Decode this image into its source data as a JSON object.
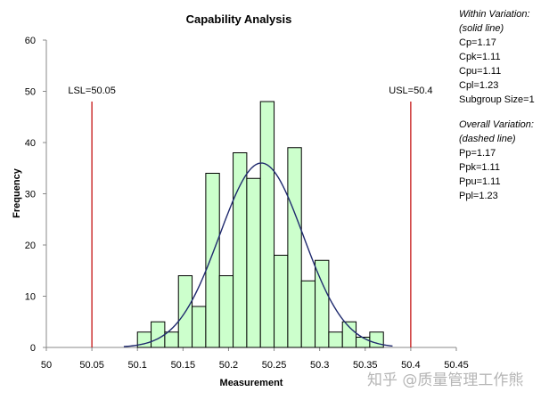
{
  "chart_data": {
    "type": "bar",
    "title": "Capability Analysis",
    "xlabel": "Measurement",
    "ylabel": "Frequency",
    "xlim": [
      50,
      50.45
    ],
    "ylim": [
      0,
      60
    ],
    "x_ticks": [
      "50",
      "50.05",
      "50.1",
      "50.15",
      "50.2",
      "50.25",
      "50.3",
      "50.35",
      "50.4",
      "50.45"
    ],
    "y_ticks": [
      "0",
      "10",
      "20",
      "30",
      "40",
      "50",
      "60"
    ],
    "bin_width": 0.015,
    "bins": [
      {
        "start": 50.1,
        "count": 3
      },
      {
        "start": 50.115,
        "count": 5
      },
      {
        "start": 50.13,
        "count": 3
      },
      {
        "start": 50.145,
        "count": 14
      },
      {
        "start": 50.16,
        "count": 8
      },
      {
        "start": 50.175,
        "count": 34
      },
      {
        "start": 50.19,
        "count": 14
      },
      {
        "start": 50.205,
        "count": 38
      },
      {
        "start": 50.22,
        "count": 33
      },
      {
        "start": 50.235,
        "count": 48
      },
      {
        "start": 50.25,
        "count": 18
      },
      {
        "start": 50.265,
        "count": 39
      },
      {
        "start": 50.28,
        "count": 13
      },
      {
        "start": 50.295,
        "count": 17
      },
      {
        "start": 50.31,
        "count": 3
      },
      {
        "start": 50.325,
        "count": 5
      },
      {
        "start": 50.34,
        "count": 2
      },
      {
        "start": 50.355,
        "count": 3
      }
    ],
    "bar_fill": "#ccffcc",
    "bar_stroke": "#000000",
    "curve": {
      "mean": 50.236,
      "sd": 0.046,
      "peak": 36,
      "range": [
        50.085,
        50.38
      ],
      "color": "#1f2a6e"
    },
    "spec_limits": [
      {
        "label": "LSL=50.05",
        "value": 50.05,
        "color": "#c00000"
      },
      {
        "label": "USL=50.4",
        "value": 50.4,
        "color": "#c00000"
      }
    ]
  },
  "stats": {
    "within_header": "Within Variation:",
    "within_sub": "(solid line)",
    "within": [
      "Cp=1.17",
      "Cpk=1.11",
      "Cpu=1.11",
      "Cpl=1.23",
      "Subgroup Size=1"
    ],
    "overall_header": "Overall Variation:",
    "overall_sub": "(dashed line)",
    "overall": [
      "Pp=1.17",
      "Ppk=1.11",
      "Ppu=1.11",
      "Ppl=1.23"
    ]
  },
  "watermark": "知乎 @质量管理工作熊"
}
